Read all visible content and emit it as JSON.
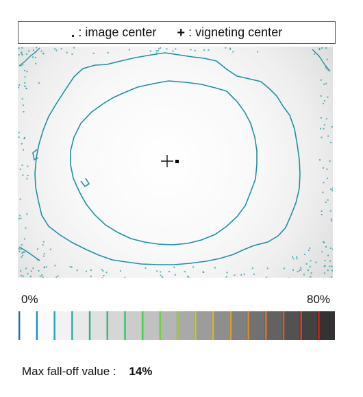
{
  "legend": {
    "image_center": {
      "symbol": ".",
      "label": ": image center"
    },
    "vignetting_center": {
      "symbol": "+",
      "label": ": vigneting center"
    }
  },
  "scale": {
    "min_label": "0%",
    "max_label": "80%",
    "bands": [
      {
        "tone": "#ffffff",
        "line": "#1f6fb0"
      },
      {
        "tone": "#fafafa",
        "line": "#1e8fc0"
      },
      {
        "tone": "#f2f2f2",
        "line": "#22a6b8"
      },
      {
        "tone": "#e9e9e9",
        "line": "#22b0a0"
      },
      {
        "tone": "#e0e0e0",
        "line": "#25b88a"
      },
      {
        "tone": "#d6d6d6",
        "line": "#28c078"
      },
      {
        "tone": "#cccccc",
        "line": "#30c865"
      },
      {
        "tone": "#c1c1c1",
        "line": "#45d050"
      },
      {
        "tone": "#b5b5b5",
        "line": "#70d040"
      },
      {
        "tone": "#a9a9a9",
        "line": "#9ccc38"
      },
      {
        "tone": "#9c9c9c",
        "line": "#c4c830"
      },
      {
        "tone": "#8e8e8e",
        "line": "#d8b82c"
      },
      {
        "tone": "#808080",
        "line": "#e0a028"
      },
      {
        "tone": "#717171",
        "line": "#e48a26"
      },
      {
        "tone": "#626262",
        "line": "#e87024"
      },
      {
        "tone": "#525252",
        "line": "#ea5822"
      },
      {
        "tone": "#424242",
        "line": "#e83c20"
      },
      {
        "tone": "#333333",
        "line": "#d82018"
      }
    ]
  },
  "map": {
    "contour_color": "#1d8fa5",
    "speckle_color": "#1f9a9e"
  },
  "stats": {
    "label": "Max fall-off value :",
    "value": "14%"
  }
}
